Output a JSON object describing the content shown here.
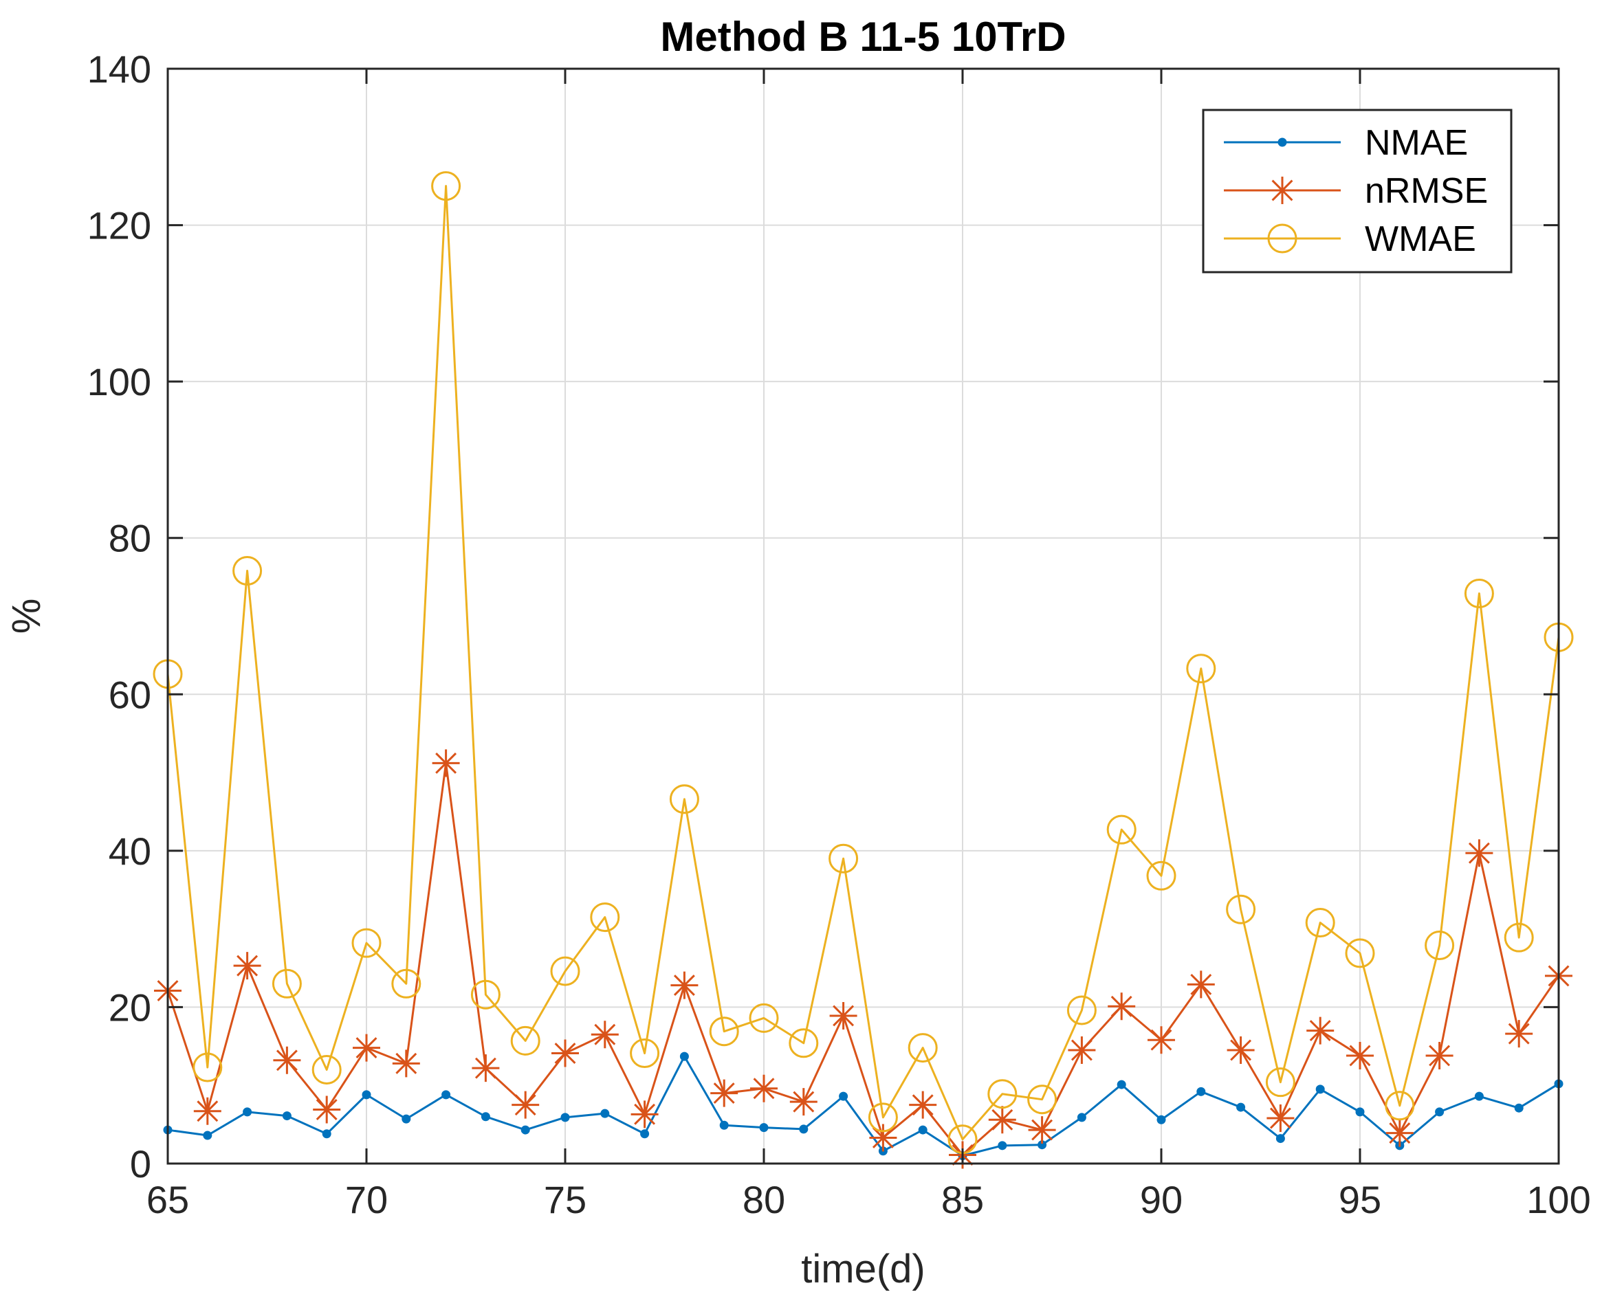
{
  "chart_data": {
    "type": "line",
    "title": "Method B 11-5 10TrD",
    "xlabel": "time(d)",
    "ylabel": "%",
    "xlim": [
      65,
      100
    ],
    "ylim": [
      0,
      140
    ],
    "xticks": [
      65,
      70,
      75,
      80,
      85,
      90,
      95,
      100
    ],
    "yticks": [
      0,
      20,
      40,
      60,
      80,
      100,
      120,
      140
    ],
    "grid": true,
    "legend_position": "top-right",
    "x": [
      65,
      66,
      67,
      68,
      69,
      70,
      71,
      72,
      73,
      74,
      75,
      76,
      77,
      78,
      79,
      80,
      81,
      82,
      83,
      84,
      85,
      86,
      87,
      88,
      89,
      90,
      91,
      92,
      93,
      94,
      95,
      96,
      97,
      98,
      99,
      100
    ],
    "series": [
      {
        "name": "NMAE",
        "color": "#0072BD",
        "marker": "dot",
        "values": [
          4.3,
          3.6,
          6.6,
          6.1,
          3.8,
          8.8,
          5.7,
          8.8,
          6.0,
          4.3,
          5.9,
          6.4,
          3.8,
          13.7,
          4.9,
          4.6,
          4.4,
          8.6,
          1.6,
          4.3,
          1.0,
          2.3,
          2.4,
          5.9,
          10.1,
          5.6,
          9.2,
          7.2,
          3.2,
          9.5,
          6.6,
          2.3,
          6.6,
          8.6,
          7.1,
          10.2
        ]
      },
      {
        "name": "nRMSE",
        "color": "#D95319",
        "marker": "asterisk",
        "values": [
          22.1,
          6.7,
          25.3,
          13.2,
          6.9,
          14.8,
          12.8,
          51.2,
          12.2,
          7.5,
          14.1,
          16.5,
          6.3,
          22.8,
          9.0,
          9.6,
          7.9,
          18.9,
          3.3,
          7.5,
          1.1,
          5.6,
          4.3,
          14.5,
          20.1,
          15.8,
          22.9,
          14.5,
          5.8,
          17.0,
          13.8,
          3.9,
          13.8,
          39.7,
          16.6,
          24.0
        ]
      },
      {
        "name": "WMAE",
        "color": "#EDB120",
        "marker": "circle",
        "values": [
          62.6,
          12.3,
          75.8,
          23.0,
          12.0,
          28.2,
          23.0,
          125.0,
          21.6,
          15.7,
          24.6,
          31.5,
          14.1,
          46.6,
          16.9,
          18.6,
          15.4,
          39.0,
          5.9,
          14.8,
          3.1,
          8.9,
          8.2,
          19.6,
          42.7,
          36.8,
          63.3,
          32.5,
          10.4,
          30.8,
          26.9,
          7.4,
          27.9,
          72.9,
          28.9,
          67.3
        ]
      }
    ]
  }
}
